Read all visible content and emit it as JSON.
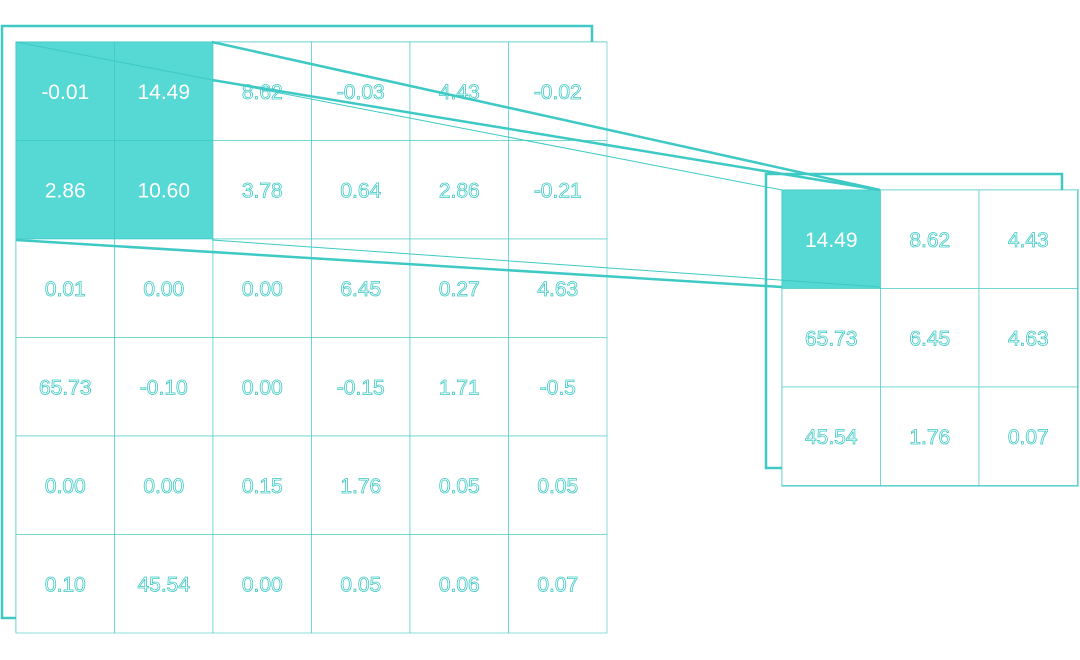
{
  "colors": {
    "accent": "#56d8d4",
    "outline": "#3fc9c4",
    "highlight_text": "#ffffff",
    "cell_text": "#ffffff",
    "background": "#ffffff"
  },
  "input_matrix": {
    "rows": [
      [
        "-0.01",
        "14.49",
        "8.62",
        "-0.03",
        "4.43",
        "-0.02"
      ],
      [
        "2.86",
        "10.60",
        "3.78",
        "0.64",
        "2.86",
        "-0.21"
      ],
      [
        "0.01",
        "0.00",
        "0.00",
        "6.45",
        "0.27",
        "4.63"
      ],
      [
        "65.73",
        "-0.10",
        "0.00",
        "-0.15",
        "1.71",
        "-0.5"
      ],
      [
        "0.00",
        "0.00",
        "0.15",
        "1.76",
        "0.05",
        "0.05"
      ],
      [
        "0.10",
        "45.54",
        "0.00",
        "0.05",
        "0.06",
        "0.07"
      ]
    ],
    "highlighted": [
      [
        0,
        0
      ],
      [
        0,
        1
      ],
      [
        1,
        0
      ],
      [
        1,
        1
      ]
    ]
  },
  "output_matrix": {
    "rows": [
      [
        "14.49",
        "8.62",
        "4.43"
      ],
      [
        "65.73",
        "6.45",
        "4.63"
      ],
      [
        "45.54",
        "1.76",
        "0.07"
      ]
    ],
    "highlighted": [
      [
        0,
        0
      ]
    ]
  }
}
